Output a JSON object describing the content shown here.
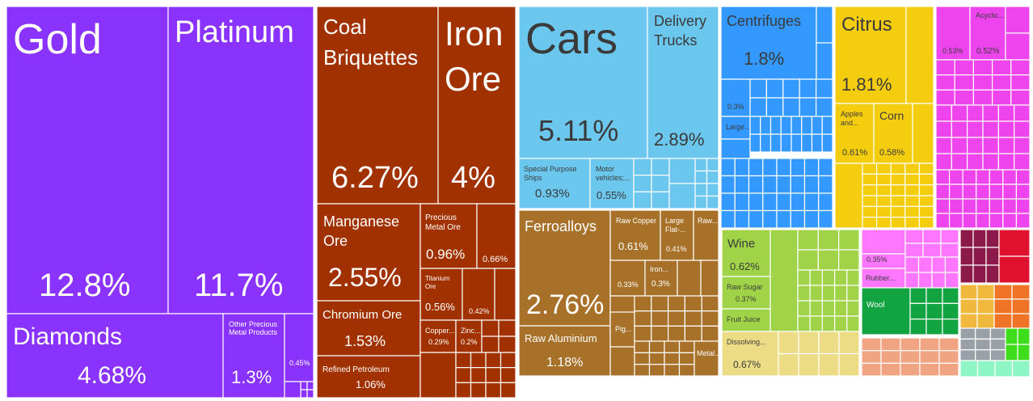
{
  "chart_data": {
    "type": "treemap",
    "title": "",
    "colors": {
      "precious_metals": "#8a33ff",
      "minerals": "#a13200",
      "transportation": "#6bc7ed",
      "metals": "#a8712a",
      "machines": "#3399ff",
      "vegetable": "#f5cd0f",
      "chemicals": "#ee44ee",
      "foodstuffs": "#a0d347",
      "animal": "#12a440",
      "plastics": "#ff77ff",
      "animal_hides": "#f0a482",
      "paper": "#ecdc86",
      "textiles": "#8b1a4a",
      "instruments": "#e0102f",
      "footwear": "#f0b83c",
      "stone": "#f07427",
      "misc": "#9aa0a8",
      "weapons": "#3ddd1c",
      "arts": "#8ef5c5"
    },
    "items": [
      {
        "name": "Gold",
        "value": "12.8%"
      },
      {
        "name": "Platinum",
        "value": "11.7%"
      },
      {
        "name": "Diamonds",
        "value": "4.68%"
      },
      {
        "name": "Other Precious Metal Products",
        "value": "1.3%"
      },
      {
        "name": "",
        "value": "0.45%"
      },
      {
        "name": "Coal Briquettes",
        "value": "6.27%"
      },
      {
        "name": "Iron Ore",
        "value": "4%"
      },
      {
        "name": "Manganese Ore",
        "value": "2.55%"
      },
      {
        "name": "Precious Metal Ore",
        "value": "0.96%"
      },
      {
        "name": "",
        "value": "0.66%"
      },
      {
        "name": "Titanium Ore",
        "value": "0.56%"
      },
      {
        "name": "",
        "value": "0.42%"
      },
      {
        "name": "Chromium Ore",
        "value": "1.53%"
      },
      {
        "name": "Copper...",
        "value": "0.29%"
      },
      {
        "name": "Zinc...",
        "value": "0.2%"
      },
      {
        "name": "Refined Petroleum",
        "value": "1.06%"
      },
      {
        "name": "Cars",
        "value": "5.11%"
      },
      {
        "name": "Delivery Trucks",
        "value": "2.89%"
      },
      {
        "name": "Special Purpose Ships",
        "value": "0.93%"
      },
      {
        "name": "Motor vehicles;...",
        "value": "0.55%"
      },
      {
        "name": "Ferroalloys",
        "value": "2.76%"
      },
      {
        "name": "Raw Copper",
        "value": "0.61%"
      },
      {
        "name": "Large Flat-...",
        "value": "0.41%"
      },
      {
        "name": "Raw...",
        "value": ""
      },
      {
        "name": "",
        "value": "0.33%"
      },
      {
        "name": "Iron...",
        "value": "0.3%"
      },
      {
        "name": "Raw Aluminium",
        "value": "1.18%"
      },
      {
        "name": "Pig...",
        "value": ""
      },
      {
        "name": "Metal...",
        "value": ""
      },
      {
        "name": "Centrifuges",
        "value": "1.8%"
      },
      {
        "name": "",
        "value": "0.3%"
      },
      {
        "name": "Large...",
        "value": ""
      },
      {
        "name": "Citrus",
        "value": "1.81%"
      },
      {
        "name": "Apples and...",
        "value": "0.61%"
      },
      {
        "name": "Corn",
        "value": "0.58%"
      },
      {
        "name": "",
        "value": "0.53%"
      },
      {
        "name": "Acyclic...",
        "value": "0.52%"
      },
      {
        "name": "Wine",
        "value": "0.62%"
      },
      {
        "name": "Raw Sugar",
        "value": "0.37%"
      },
      {
        "name": "Fruit Juice",
        "value": ""
      },
      {
        "name": "Dissolving...",
        "value": "0.67%"
      },
      {
        "name": "",
        "value": "0.35%"
      },
      {
        "name": "Rubber...",
        "value": ""
      },
      {
        "name": "Wool",
        "value": ""
      }
    ]
  }
}
